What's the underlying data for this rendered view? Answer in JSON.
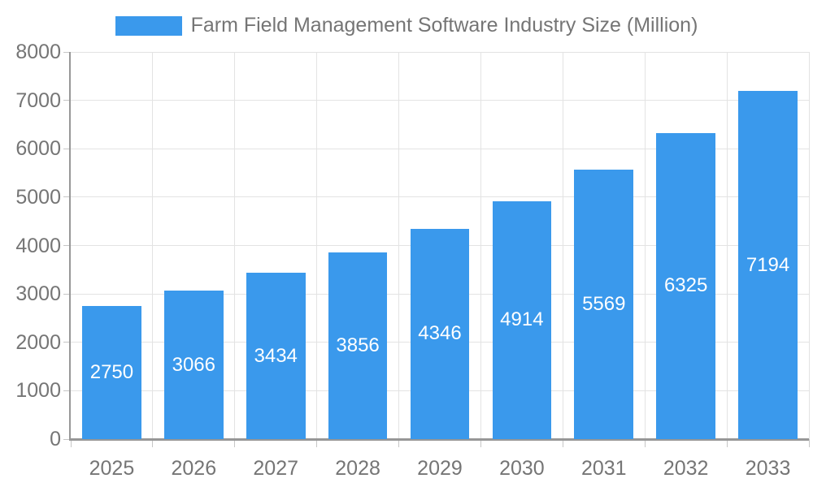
{
  "legend": {
    "label": "Farm Field Management Software Industry Size (Million)"
  },
  "colors": {
    "bar": "#3A99EC",
    "grid": "#E3E3E3",
    "axis": "#979797",
    "tick": "#C6C6C6",
    "tick_text": "#757575",
    "value_label": "#FFFFFF",
    "background": "#FFFFFF"
  },
  "chart_data": {
    "type": "bar",
    "title": "Farm Field Management Software Industry Size (Million)",
    "categories": [
      "2025",
      "2026",
      "2027",
      "2028",
      "2029",
      "2030",
      "2031",
      "2032",
      "2033"
    ],
    "values": [
      2750,
      3066,
      3434,
      3856,
      4346,
      4914,
      5569,
      6325,
      7194
    ],
    "xlabel": "",
    "ylabel": "",
    "ylim": [
      0,
      8000
    ],
    "ytick_step": 1000,
    "ytick_labels": [
      "0",
      "1000",
      "2000",
      "3000",
      "4000",
      "5000",
      "6000",
      "7000",
      "8000"
    ],
    "grid": true,
    "legend_position": "top",
    "value_labels_shown": true
  }
}
